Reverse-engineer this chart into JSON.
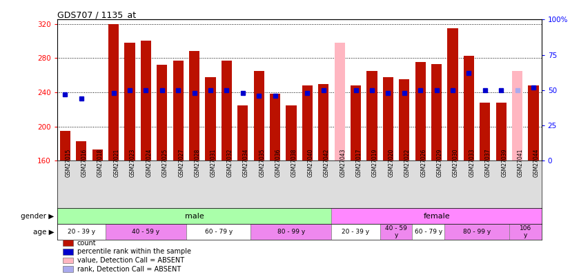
{
  "title": "GDS707 / 1135_at",
  "samples": [
    "GSM27015",
    "GSM27016",
    "GSM27018",
    "GSM27021",
    "GSM27023",
    "GSM27024",
    "GSM27025",
    "GSM27027",
    "GSM27028",
    "GSM27031",
    "GSM27032",
    "GSM27034",
    "GSM27035",
    "GSM27036",
    "GSM27038",
    "GSM27040",
    "GSM27042",
    "GSM27043",
    "GSM27017",
    "GSM27019",
    "GSM27020",
    "GSM27022",
    "GSM27026",
    "GSM27029",
    "GSM27030",
    "GSM27033",
    "GSM27037",
    "GSM27039",
    "GSM27041",
    "GSM27044"
  ],
  "counts": [
    195,
    183,
    173,
    320,
    298,
    300,
    272,
    277,
    288,
    258,
    277,
    225,
    265,
    238,
    225,
    248,
    250,
    298,
    248,
    265,
    258,
    255,
    275,
    273,
    315,
    283,
    228,
    228,
    265,
    248
  ],
  "percentile_ranks": [
    47,
    44,
    null,
    48,
    50,
    50,
    50,
    50,
    48,
    50,
    50,
    48,
    46,
    46,
    null,
    48,
    50,
    null,
    50,
    50,
    48,
    48,
    50,
    50,
    50,
    62,
    50,
    50,
    50,
    52
  ],
  "absent_flags": [
    false,
    false,
    false,
    false,
    false,
    false,
    false,
    false,
    false,
    false,
    false,
    false,
    false,
    false,
    false,
    false,
    false,
    true,
    false,
    false,
    false,
    false,
    false,
    false,
    false,
    false,
    false,
    false,
    true,
    false
  ],
  "ymin": 160,
  "ymax": 325,
  "yticks": [
    160,
    200,
    240,
    280,
    320
  ],
  "right_yticks": [
    0,
    25,
    50,
    75,
    100
  ],
  "bar_color": "#bb1100",
  "absent_bar_color": "#ffb6c1",
  "dot_color": "#0000cc",
  "absent_dot_color": "#aaaaee",
  "gender_groups": [
    {
      "label": "male",
      "start": 0,
      "end": 17,
      "color": "#aaffaa"
    },
    {
      "label": "female",
      "start": 17,
      "end": 30,
      "color": "#ff88ff"
    }
  ],
  "age_groups": [
    {
      "label": "20 - 39 y",
      "start": 0,
      "end": 3,
      "color": "#ffffff"
    },
    {
      "label": "40 - 59 y",
      "start": 3,
      "end": 8,
      "color": "#ee88ee"
    },
    {
      "label": "60 - 79 y",
      "start": 8,
      "end": 12,
      "color": "#ffffff"
    },
    {
      "label": "80 - 99 y",
      "start": 12,
      "end": 17,
      "color": "#ee88ee"
    },
    {
      "label": "20 - 39 y",
      "start": 17,
      "end": 20,
      "color": "#ffffff"
    },
    {
      "label": "40 - 59\ny",
      "start": 20,
      "end": 22,
      "color": "#ee88ee"
    },
    {
      "label": "60 - 79 y",
      "start": 22,
      "end": 24,
      "color": "#ffffff"
    },
    {
      "label": "80 - 99 y",
      "start": 24,
      "end": 28,
      "color": "#ee88ee"
    },
    {
      "label": "106\ny",
      "start": 28,
      "end": 30,
      "color": "#ee88ee"
    }
  ],
  "legend_items": [
    {
      "label": "count",
      "color": "#bb1100"
    },
    {
      "label": "percentile rank within the sample",
      "color": "#0000cc"
    },
    {
      "label": "value, Detection Call = ABSENT",
      "color": "#ffb6c1"
    },
    {
      "label": "rank, Detection Call = ABSENT",
      "color": "#aaaaee"
    }
  ]
}
